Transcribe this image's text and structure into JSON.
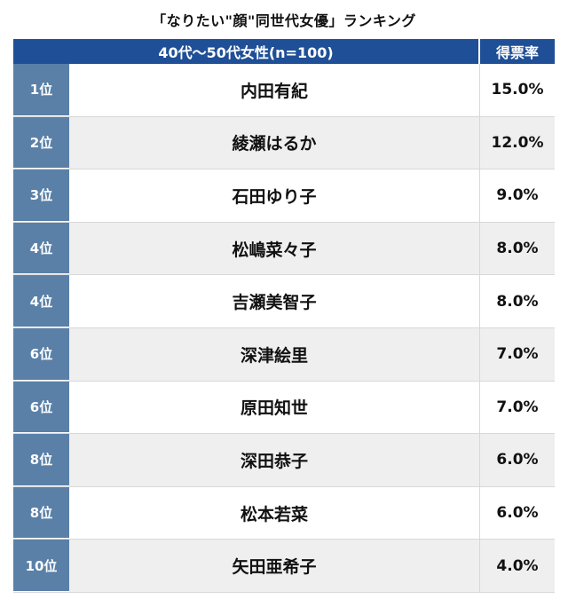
{
  "title": "「なりたい\"顔\"同世代女優」ランキング",
  "header": {
    "group_label": "40代〜50代女性(n=100)",
    "rate_label": "得票率"
  },
  "rows": [
    {
      "rank": "1位",
      "name": "内田有紀",
      "rate": "15.0%"
    },
    {
      "rank": "2位",
      "name": "綾瀬はるか",
      "rate": "12.0%"
    },
    {
      "rank": "3位",
      "name": "石田ゆり子",
      "rate": "9.0%"
    },
    {
      "rank": "4位",
      "name": "松嶋菜々子",
      "rate": "8.0%"
    },
    {
      "rank": "4位",
      "name": "吉瀬美智子",
      "rate": "8.0%"
    },
    {
      "rank": "6位",
      "name": "深津絵里",
      "rate": "7.0%"
    },
    {
      "rank": "6位",
      "name": "原田知世",
      "rate": "7.0%"
    },
    {
      "rank": "8位",
      "name": "深田恭子",
      "rate": "6.0%"
    },
    {
      "rank": "8位",
      "name": "松本若菜",
      "rate": "6.0%"
    },
    {
      "rank": "10位",
      "name": "矢田亜希子",
      "rate": "4.0%"
    }
  ],
  "colors": {
    "header_bg": "#1f4f96",
    "rank_bg": "#5a80a8",
    "stripe_bg": "#efefef"
  }
}
